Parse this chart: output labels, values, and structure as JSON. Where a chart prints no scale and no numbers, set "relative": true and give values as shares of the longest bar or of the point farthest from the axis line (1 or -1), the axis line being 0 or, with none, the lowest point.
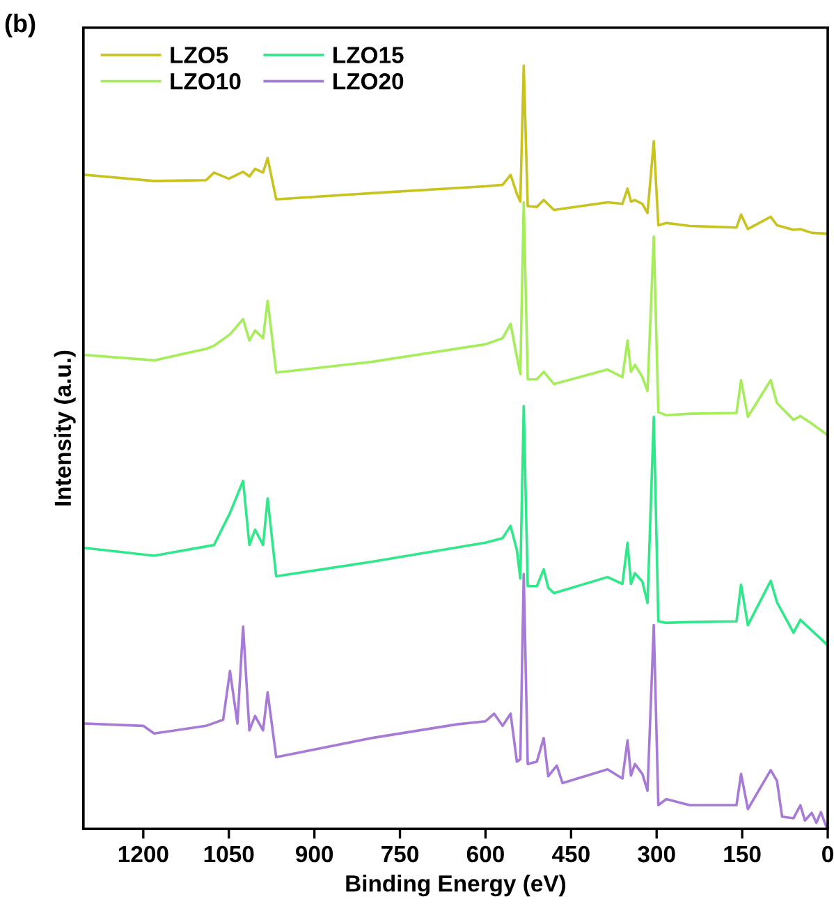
{
  "chart_data": {
    "type": "line",
    "xlabel": "Binding Energy (eV)",
    "ylabel": "Intensity (a.u.)",
    "annotations": [
      "(b)"
    ],
    "relative": true,
    "xlim": [
      1305,
      0
    ],
    "xticks": [
      1200,
      1050,
      900,
      750,
      600,
      450,
      300,
      150,
      0
    ],
    "legend": "top left",
    "grid": false,
    "line_style": "solid",
    "series": [
      {
        "name": "LZO5",
        "color": "#c8c31e",
        "x": [
          1301,
          1181,
          1090,
          1076,
          1050,
          1025,
          1014,
          1004,
          990,
          982,
          967,
          800,
          600,
          570,
          556,
          545,
          539,
          533,
          526,
          510,
          498,
          480,
          386,
          360,
          351,
          345,
          338,
          325,
          316,
          305,
          297,
          283,
          242,
          160,
          152,
          140,
          100,
          89,
          60,
          48,
          28,
          2
        ],
        "values": [
          0.857,
          0.849,
          0.85,
          0.86,
          0.852,
          0.861,
          0.855,
          0.865,
          0.86,
          0.879,
          0.825,
          0.833,
          0.842,
          0.844,
          0.857,
          0.832,
          0.822,
          1.0,
          0.816,
          0.815,
          0.824,
          0.811,
          0.821,
          0.819,
          0.839,
          0.822,
          0.824,
          0.819,
          0.807,
          0.901,
          0.791,
          0.794,
          0.79,
          0.788,
          0.805,
          0.786,
          0.802,
          0.791,
          0.785,
          0.786,
          0.781,
          0.78
        ]
      },
      {
        "name": "LZO10",
        "color": "#a5ee5a",
        "x": [
          1301,
          1181,
          1090,
          1076,
          1048,
          1025,
          1014,
          1004,
          990,
          982,
          967,
          800,
          600,
          570,
          556,
          545,
          539,
          533,
          526,
          510,
          498,
          480,
          386,
          360,
          351,
          345,
          338,
          325,
          316,
          305,
          297,
          283,
          242,
          160,
          152,
          140,
          100,
          89,
          60,
          48,
          28,
          2
        ],
        "values": [
          0.621,
          0.614,
          0.629,
          0.633,
          0.648,
          0.668,
          0.64,
          0.653,
          0.643,
          0.692,
          0.598,
          0.612,
          0.635,
          0.643,
          0.662,
          0.618,
          0.596,
          0.821,
          0.589,
          0.589,
          0.599,
          0.583,
          0.602,
          0.592,
          0.64,
          0.599,
          0.608,
          0.592,
          0.574,
          0.776,
          0.546,
          0.542,
          0.544,
          0.545,
          0.588,
          0.54,
          0.588,
          0.558,
          0.536,
          0.541,
          0.531,
          0.517
        ]
      },
      {
        "name": "LZO15",
        "color": "#2ee88a",
        "x": [
          1301,
          1181,
          1076,
          1048,
          1025,
          1014,
          1004,
          990,
          982,
          967,
          800,
          600,
          570,
          556,
          545,
          539,
          533,
          526,
          510,
          498,
          490,
          480,
          386,
          360,
          351,
          345,
          338,
          325,
          316,
          305,
          297,
          283,
          242,
          160,
          152,
          140,
          100,
          89,
          60,
          48,
          28,
          2
        ],
        "values": [
          0.368,
          0.358,
          0.372,
          0.414,
          0.456,
          0.372,
          0.392,
          0.372,
          0.433,
          0.331,
          0.35,
          0.375,
          0.381,
          0.397,
          0.365,
          0.328,
          0.554,
          0.318,
          0.318,
          0.34,
          0.316,
          0.309,
          0.33,
          0.321,
          0.375,
          0.321,
          0.335,
          0.324,
          0.296,
          0.54,
          0.272,
          0.27,
          0.271,
          0.272,
          0.32,
          0.267,
          0.325,
          0.297,
          0.257,
          0.274,
          0.26,
          0.242
        ]
      },
      {
        "name": "LZO20",
        "color": "#a87ad8",
        "x": [
          1301,
          1200,
          1181,
          1090,
          1060,
          1048,
          1035,
          1025,
          1014,
          1004,
          990,
          982,
          967,
          800,
          650,
          600,
          585,
          570,
          556,
          545,
          539,
          533,
          526,
          510,
          498,
          490,
          475,
          465,
          386,
          360,
          351,
          345,
          338,
          325,
          316,
          305,
          297,
          283,
          242,
          160,
          152,
          140,
          100,
          89,
          80,
          60,
          48,
          40,
          28,
          20,
          12,
          2
        ],
        "values": [
          0.138,
          0.135,
          0.125,
          0.135,
          0.143,
          0.207,
          0.138,
          0.265,
          0.129,
          0.148,
          0.129,
          0.179,
          0.094,
          0.119,
          0.137,
          0.141,
          0.151,
          0.135,
          0.151,
          0.088,
          0.091,
          0.334,
          0.085,
          0.088,
          0.119,
          0.069,
          0.083,
          0.06,
          0.078,
          0.066,
          0.116,
          0.07,
          0.085,
          0.072,
          0.05,
          0.267,
          0.031,
          0.039,
          0.031,
          0.031,
          0.072,
          0.026,
          0.077,
          0.063,
          0.016,
          0.014,
          0.031,
          0.011,
          0.021,
          0.008,
          0.022,
          0.002
        ]
      }
    ]
  }
}
